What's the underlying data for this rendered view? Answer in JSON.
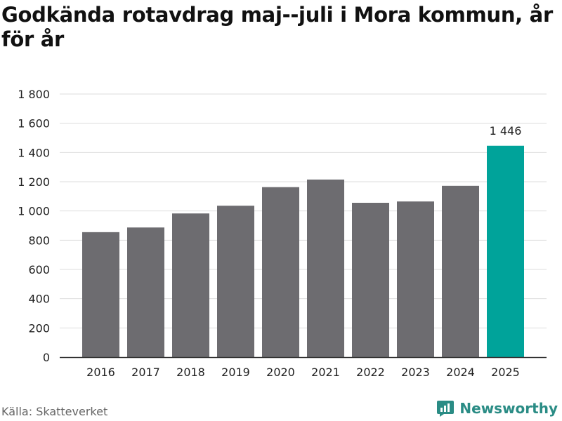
{
  "title": "Godkända rotavdrag maj--juli i Mora kommun, år för år",
  "source": "Källa: Skatteverket",
  "brand": {
    "name": "Newsworthy",
    "icon": "newsworthy-logo-icon",
    "color": "#2a8c85"
  },
  "colors": {
    "bar": "#6d6c70",
    "highlight": "#00a39a",
    "grid": "#dddddd",
    "axis": "#333333",
    "text": "#222222"
  },
  "chart_data": {
    "type": "bar",
    "title": "Godkända rotavdrag maj--juli i Mora kommun, år för år",
    "xlabel": "",
    "ylabel": "",
    "categories": [
      "2016",
      "2017",
      "2018",
      "2019",
      "2020",
      "2021",
      "2022",
      "2023",
      "2024",
      "2025"
    ],
    "values": [
      855,
      887,
      983,
      1036,
      1163,
      1215,
      1056,
      1065,
      1172,
      1446
    ],
    "ylim": [
      0,
      1800
    ],
    "yticks": [
      0,
      200,
      400,
      600,
      800,
      1000,
      1200,
      1400,
      1600,
      1800
    ],
    "ytick_labels": [
      "0",
      "200",
      "400",
      "600",
      "800",
      "1 000",
      "1 200",
      "1 400",
      "1 600",
      "1 800"
    ],
    "highlight_index": 9,
    "data_labels": [
      {
        "index": 9,
        "text": "1 446"
      }
    ],
    "grid": true,
    "legend": "none"
  }
}
